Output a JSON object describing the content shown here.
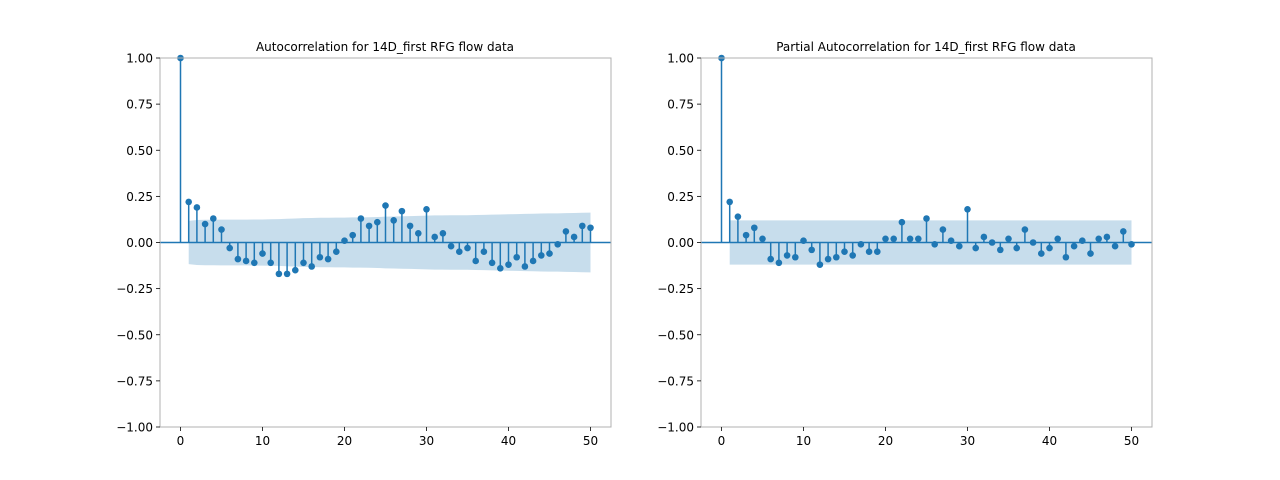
{
  "chart_data": [
    {
      "type": "stem",
      "title": "Autocorrelation for 14D_first RFG flow data",
      "xlabel": "",
      "ylabel": "",
      "xlim": [
        -2.5,
        52.5
      ],
      "ylim": [
        -1.0,
        1.0
      ],
      "x_ticks": [
        0,
        10,
        20,
        30,
        40,
        50
      ],
      "y_ticks": [
        -1.0,
        -0.75,
        -0.5,
        -0.25,
        0.0,
        0.25,
        0.5,
        0.75,
        1.0
      ],
      "x_tick_labels": [
        "0",
        "10",
        "20",
        "30",
        "40",
        "50"
      ],
      "y_tick_labels": [
        "−1.00",
        "−0.75",
        "−0.50",
        "−0.25",
        "0.00",
        "0.25",
        "0.50",
        "0.75",
        "1.00"
      ],
      "lags": [
        0,
        1,
        2,
        3,
        4,
        5,
        6,
        7,
        8,
        9,
        10,
        11,
        12,
        13,
        14,
        15,
        16,
        17,
        18,
        19,
        20,
        21,
        22,
        23,
        24,
        25,
        26,
        27,
        28,
        29,
        30,
        31,
        32,
        33,
        34,
        35,
        36,
        37,
        38,
        39,
        40,
        41,
        42,
        43,
        44,
        45,
        46,
        47,
        48,
        49,
        50
      ],
      "values": [
        1.0,
        0.22,
        0.19,
        0.1,
        0.13,
        0.07,
        -0.03,
        -0.09,
        -0.1,
        -0.11,
        -0.06,
        -0.11,
        -0.17,
        -0.17,
        -0.15,
        -0.11,
        -0.13,
        -0.08,
        -0.09,
        -0.05,
        0.01,
        0.04,
        0.13,
        0.09,
        0.11,
        0.2,
        0.12,
        0.17,
        0.09,
        0.05,
        0.18,
        0.03,
        0.05,
        -0.02,
        -0.05,
        -0.03,
        -0.1,
        -0.05,
        -0.11,
        -0.14,
        -0.12,
        -0.08,
        -0.13,
        -0.1,
        -0.07,
        -0.06,
        -0.01,
        0.06,
        0.03,
        0.09,
        0.08
      ],
      "confidence_band": [
        null,
        0.117,
        0.122,
        0.123,
        0.123,
        0.124,
        0.124,
        0.124,
        0.124,
        0.125,
        0.125,
        0.126,
        0.127,
        0.129,
        0.13,
        0.132,
        0.133,
        0.134,
        0.134,
        0.135,
        0.135,
        0.136,
        0.136,
        0.137,
        0.138,
        0.14,
        0.141,
        0.142,
        0.143,
        0.144,
        0.146,
        0.147,
        0.147,
        0.148,
        0.148,
        0.148,
        0.149,
        0.15,
        0.151,
        0.152,
        0.153,
        0.154,
        0.155,
        0.156,
        0.157,
        0.158,
        0.158,
        0.159,
        0.16,
        0.161,
        0.162
      ],
      "colors": {
        "stem": "#1f77b4",
        "band": "#1f77b4",
        "band_opacity": 0.25,
        "zero_line": "#1f77b4",
        "frame": "#b0b0b0"
      }
    },
    {
      "type": "stem",
      "title": "Partial Autocorrelation for 14D_first RFG flow data",
      "xlabel": "",
      "ylabel": "",
      "xlim": [
        -2.5,
        52.5
      ],
      "ylim": [
        -1.0,
        1.0
      ],
      "x_ticks": [
        0,
        10,
        20,
        30,
        40,
        50
      ],
      "y_ticks": [
        -1.0,
        -0.75,
        -0.5,
        -0.25,
        0.0,
        0.25,
        0.5,
        0.75,
        1.0
      ],
      "x_tick_labels": [
        "0",
        "10",
        "20",
        "30",
        "40",
        "50"
      ],
      "y_tick_labels": [
        "−1.00",
        "−0.75",
        "−0.50",
        "−0.25",
        "0.00",
        "0.25",
        "0.50",
        "0.75",
        "1.00"
      ],
      "lags": [
        0,
        1,
        2,
        3,
        4,
        5,
        6,
        7,
        8,
        9,
        10,
        11,
        12,
        13,
        14,
        15,
        16,
        17,
        18,
        19,
        20,
        21,
        22,
        23,
        24,
        25,
        26,
        27,
        28,
        29,
        30,
        31,
        32,
        33,
        34,
        35,
        36,
        37,
        38,
        39,
        40,
        41,
        42,
        43,
        44,
        45,
        46,
        47,
        48,
        49,
        50
      ],
      "values": [
        1.0,
        0.22,
        0.14,
        0.04,
        0.08,
        0.02,
        -0.09,
        -0.11,
        -0.07,
        -0.08,
        0.01,
        -0.04,
        -0.12,
        -0.09,
        -0.08,
        -0.05,
        -0.07,
        -0.01,
        -0.05,
        -0.05,
        0.02,
        0.02,
        0.11,
        0.02,
        0.02,
        0.13,
        -0.01,
        0.07,
        0.01,
        -0.02,
        0.18,
        -0.03,
        0.03,
        0.0,
        -0.04,
        0.02,
        -0.03,
        0.07,
        0.0,
        -0.06,
        -0.03,
        0.02,
        -0.08,
        -0.02,
        0.01,
        -0.06,
        0.02,
        0.03,
        -0.02,
        0.06,
        -0.01
      ],
      "confidence_band": [
        null,
        0.12,
        0.12,
        0.12,
        0.12,
        0.12,
        0.12,
        0.12,
        0.12,
        0.12,
        0.12,
        0.12,
        0.12,
        0.12,
        0.12,
        0.12,
        0.12,
        0.12,
        0.12,
        0.12,
        0.12,
        0.12,
        0.12,
        0.12,
        0.12,
        0.12,
        0.12,
        0.12,
        0.12,
        0.12,
        0.12,
        0.12,
        0.12,
        0.12,
        0.12,
        0.12,
        0.12,
        0.12,
        0.12,
        0.12,
        0.12,
        0.12,
        0.12,
        0.12,
        0.12,
        0.12,
        0.12,
        0.12,
        0.12,
        0.12,
        0.12
      ],
      "colors": {
        "stem": "#1f77b4",
        "band": "#1f77b4",
        "band_opacity": 0.25,
        "zero_line": "#1f77b4",
        "frame": "#b0b0b0"
      }
    }
  ]
}
